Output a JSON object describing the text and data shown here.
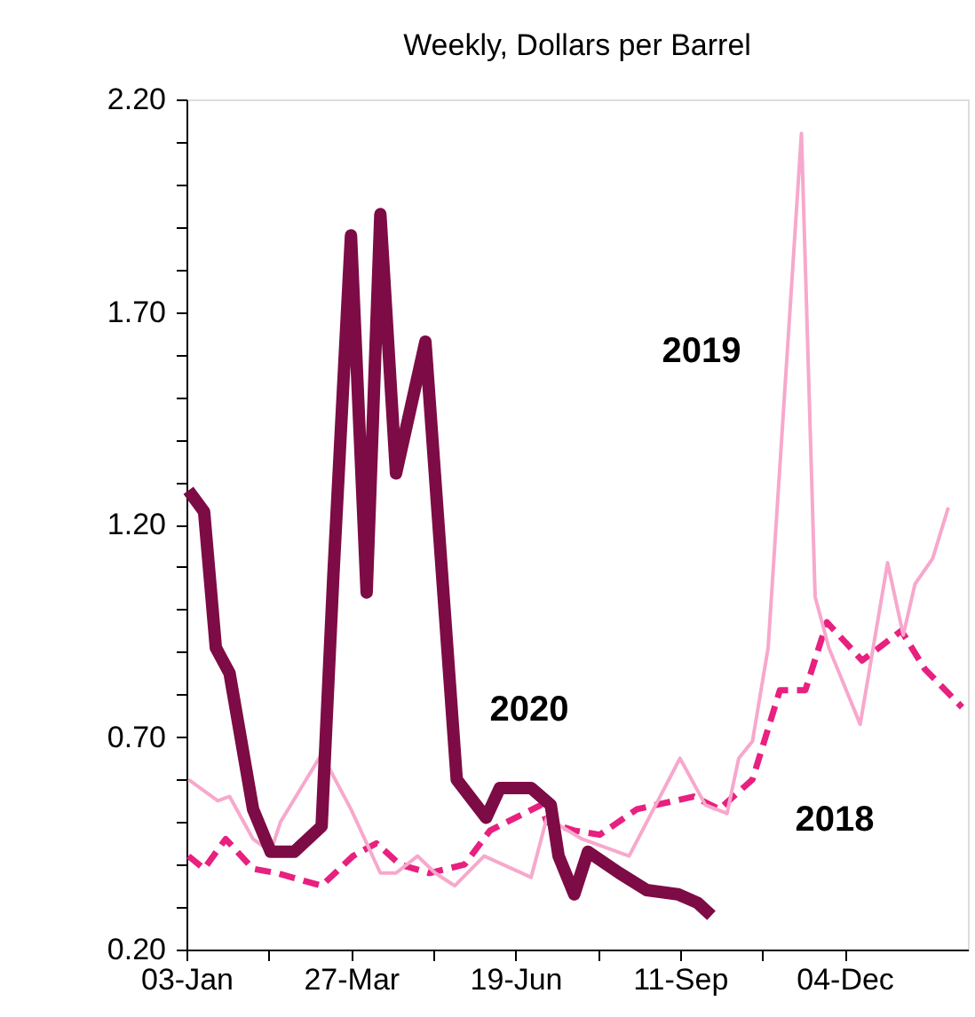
{
  "chart_data": {
    "type": "line",
    "subtitle": "Weekly, Dollars per Barrel",
    "xlim": [
      "2020-01-03",
      "2021-02-05"
    ],
    "xticks": [
      {
        "value": "2020-01-03",
        "label": "03-Jan"
      },
      {
        "value": "2020-02-14",
        "label": null
      },
      {
        "value": "2020-03-27",
        "label": "27-Mar"
      },
      {
        "value": "2020-05-08",
        "label": null
      },
      {
        "value": "2020-06-19",
        "label": "19-Jun"
      },
      {
        "value": "2020-07-31",
        "label": null
      },
      {
        "value": "2020-09-11",
        "label": "11-Sep"
      },
      {
        "value": "2020-10-23",
        "label": null
      },
      {
        "value": "2020-12-04",
        "label": "04-Dec"
      }
    ],
    "ylim": [
      0.2,
      2.2
    ],
    "yticks": [
      {
        "value": 0.2,
        "label": "0.20"
      },
      {
        "value": 0.3,
        "label": null
      },
      {
        "value": 0.4,
        "label": null
      },
      {
        "value": 0.5,
        "label": null
      },
      {
        "value": 0.6,
        "label": null
      },
      {
        "value": 0.7,
        "label": "0.70"
      },
      {
        "value": 0.8,
        "label": null
      },
      {
        "value": 0.9,
        "label": null
      },
      {
        "value": 1.0,
        "label": null
      },
      {
        "value": 1.1,
        "label": null
      },
      {
        "value": 1.2,
        "label": "1.20"
      },
      {
        "value": 1.3,
        "label": null
      },
      {
        "value": 1.4,
        "label": null
      },
      {
        "value": 1.5,
        "label": null
      },
      {
        "value": 1.6,
        "label": null
      },
      {
        "value": 1.7,
        "label": "1.70"
      },
      {
        "value": 1.8,
        "label": null
      },
      {
        "value": 1.9,
        "label": null
      },
      {
        "value": 2.0,
        "label": null
      },
      {
        "value": 2.1,
        "label": null
      },
      {
        "value": 2.2,
        "label": "2.20"
      }
    ],
    "grid": false,
    "series": [
      {
        "name": "2018",
        "color": "#e8207f",
        "line_style": "dashed",
        "x": [
          "2020-01-04",
          "2020-01-12",
          "2020-01-23",
          "2020-02-06",
          "2020-02-18",
          "2020-03-12",
          "2020-03-28",
          "2020-04-09",
          "2020-04-21",
          "2020-05-06",
          "2020-05-24",
          "2020-06-06",
          "2020-07-02",
          "2020-07-05",
          "2020-07-19",
          "2020-08-01",
          "2020-08-20",
          "2020-09-18",
          "2020-10-01",
          "2020-10-18",
          "2020-11-01",
          "2020-11-14",
          "2020-11-25",
          "2020-12-13",
          "2021-01-02",
          "2021-01-14",
          "2021-02-02"
        ],
        "values": [
          0.42,
          0.39,
          0.46,
          0.39,
          0.38,
          0.35,
          0.42,
          0.45,
          0.4,
          0.38,
          0.4,
          0.48,
          0.54,
          0.5,
          0.48,
          0.47,
          0.53,
          0.56,
          0.53,
          0.6,
          0.81,
          0.81,
          0.97,
          0.88,
          0.95,
          0.86,
          0.77
        ]
      },
      {
        "name": "2019",
        "color": "#f7a8cc",
        "line_style": "solid",
        "x": [
          "2020-01-04",
          "2020-01-19",
          "2020-01-25",
          "2020-02-06",
          "2020-02-15",
          "2020-02-20",
          "2020-03-12",
          "2020-03-27",
          "2020-04-11",
          "2020-04-19",
          "2020-04-30",
          "2020-05-09",
          "2020-05-19",
          "2020-06-03",
          "2020-06-27",
          "2020-07-05",
          "2020-07-23",
          "2020-08-16",
          "2020-09-11",
          "2020-09-24",
          "2020-10-05",
          "2020-10-11",
          "2020-10-18",
          "2020-10-26",
          "2020-11-12",
          "2020-11-19",
          "2020-11-26",
          "2020-12-12",
          "2020-12-26",
          "2021-01-03",
          "2021-01-09",
          "2021-01-18",
          "2021-01-26"
        ],
        "values": [
          0.6,
          0.55,
          0.56,
          0.46,
          0.43,
          0.5,
          0.66,
          0.53,
          0.38,
          0.38,
          0.42,
          0.38,
          0.35,
          0.42,
          0.37,
          0.51,
          0.46,
          0.42,
          0.65,
          0.54,
          0.52,
          0.65,
          0.69,
          0.91,
          2.12,
          1.03,
          0.91,
          0.73,
          1.11,
          0.94,
          1.06,
          1.12,
          1.24
        ]
      },
      {
        "name": "2020",
        "color": "#7d0b45",
        "line_style": "solid",
        "x": [
          "2020-01-04",
          "2020-01-12",
          "2020-01-18",
          "2020-01-25",
          "2020-02-06",
          "2020-02-15",
          "2020-02-27",
          "2020-03-12",
          "2020-03-18",
          "2020-03-27",
          "2020-04-04",
          "2020-04-11",
          "2020-04-19",
          "2020-05-04",
          "2020-05-20",
          "2020-06-04",
          "2020-06-11",
          "2020-06-27",
          "2020-07-07",
          "2020-07-11",
          "2020-07-19",
          "2020-07-26",
          "2020-08-11",
          "2020-08-25",
          "2020-09-10",
          "2020-09-20",
          "2020-09-27"
        ],
        "values": [
          1.28,
          1.23,
          0.91,
          0.85,
          0.53,
          0.43,
          0.43,
          0.49,
          1.08,
          1.88,
          1.04,
          1.93,
          1.32,
          1.63,
          0.6,
          0.51,
          0.58,
          0.58,
          0.54,
          0.42,
          0.33,
          0.43,
          0.38,
          0.34,
          0.33,
          0.31,
          0.28
        ]
      }
    ]
  }
}
